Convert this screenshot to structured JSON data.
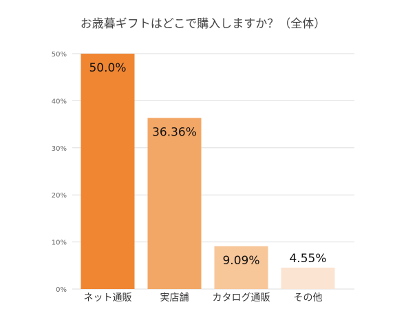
{
  "chart_data": {
    "type": "bar",
    "title": "お歳暮ギフトはどこで購入しますか？（全体）",
    "categories": [
      "ネット通販",
      "実店舗",
      "カタログ通販",
      "その他"
    ],
    "values": [
      50.0,
      36.36,
      9.09,
      4.55
    ],
    "value_labels": [
      "50.0%",
      "36.36%",
      "9.09%",
      "4.55%"
    ],
    "bar_colors": [
      "#f08632",
      "#f3a766",
      "#f7c699",
      "#fbe4d1"
    ],
    "ylim": [
      0,
      50
    ],
    "yticks": [
      0,
      10,
      20,
      30,
      40,
      50
    ],
    "ytick_labels": [
      "0%",
      "10%",
      "20%",
      "30%",
      "40%",
      "50%"
    ],
    "grid": true,
    "legend": "none"
  }
}
